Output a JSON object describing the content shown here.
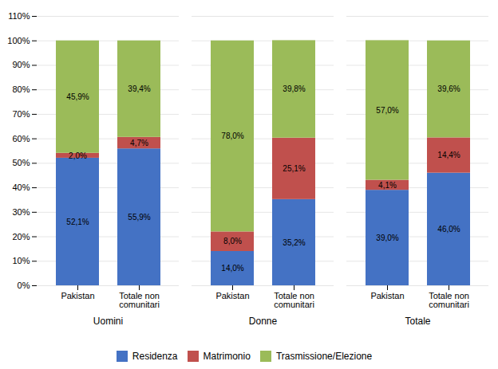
{
  "chart_data": {
    "type": "bar",
    "stacked": true,
    "categories": [
      "Pakistan",
      "Totale non\ncomunitari",
      "Pakistan",
      "Totale non\ncomunitari",
      "Pakistan",
      "Totale non\ncomunitari"
    ],
    "groups": [
      "Uomini",
      "Donne",
      "Totale"
    ],
    "series": [
      {
        "name": "Residenza",
        "color": "#4472C4",
        "values": [
          52.1,
          55.9,
          14.0,
          35.2,
          39.0,
          46.0
        ],
        "value_labels": [
          "52,1%",
          "55,9%",
          "14,0%",
          "35,2%",
          "39,0%",
          "46,0%"
        ]
      },
      {
        "name": "Matrimonio",
        "color": "#C0504D",
        "values": [
          2.0,
          4.7,
          8.0,
          25.1,
          4.1,
          14.4
        ],
        "value_labels": [
          "2,0%",
          "4,7%",
          "8,0%",
          "25,1%",
          "4,1%",
          "14,4%"
        ]
      },
      {
        "name": "Trasmissione/Elezione",
        "color": "#9BBB59",
        "values": [
          45.9,
          39.4,
          78.0,
          39.8,
          57.0,
          39.6
        ],
        "value_labels": [
          "45,9%",
          "39,4%",
          "78,0%",
          "39,8%",
          "57,0%",
          "39,6%"
        ]
      }
    ],
    "ylim": [
      0,
      110
    ],
    "yticks": [
      {
        "value": 0,
        "label": "0%"
      },
      {
        "value": 10,
        "label": "10%"
      },
      {
        "value": 20,
        "label": "20%"
      },
      {
        "value": 30,
        "label": "30%"
      },
      {
        "value": 40,
        "label": "40%"
      },
      {
        "value": 50,
        "label": "50%"
      },
      {
        "value": 60,
        "label": "60%"
      },
      {
        "value": 70,
        "label": "70%"
      },
      {
        "value": 80,
        "label": "80%"
      },
      {
        "value": 90,
        "label": "90%"
      },
      {
        "value": 100,
        "label": "100%"
      },
      {
        "value": 110,
        "label": "110%"
      }
    ],
    "grid": true,
    "data_labels": true,
    "legend": "bottom"
  }
}
